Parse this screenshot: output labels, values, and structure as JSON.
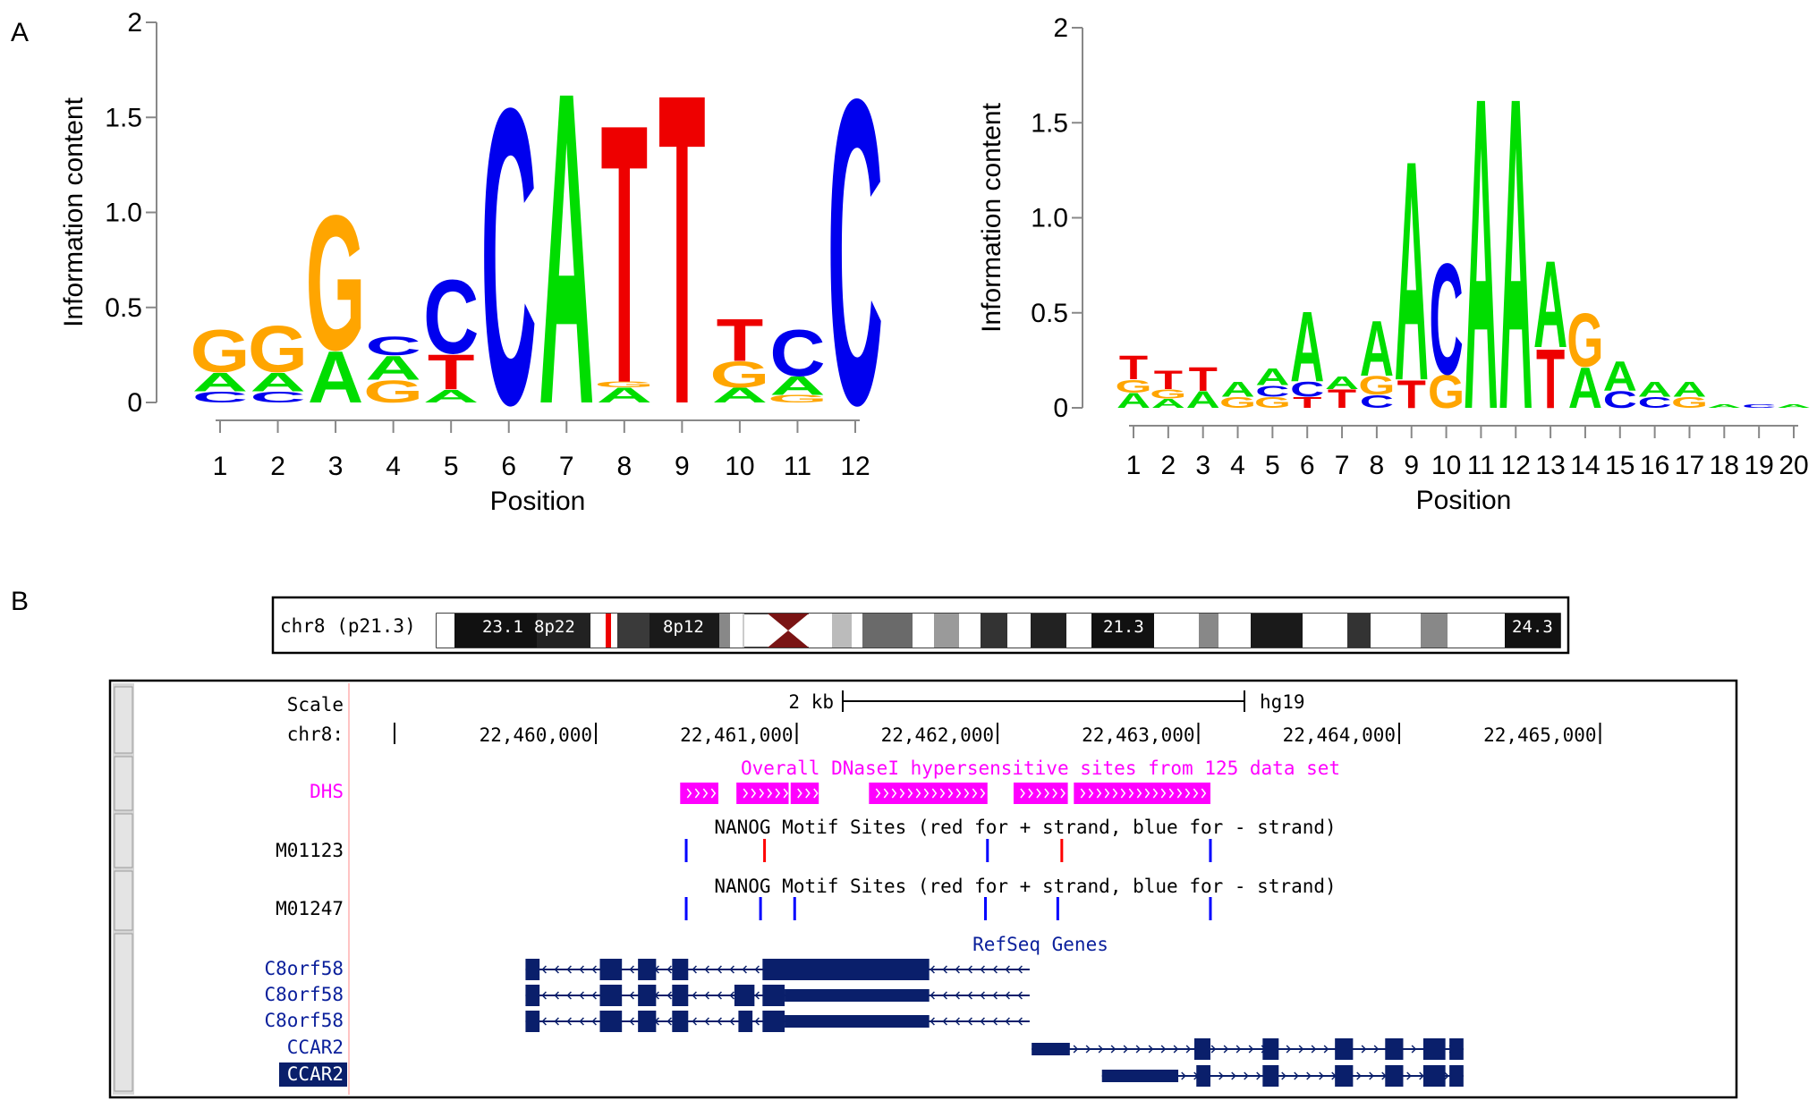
{
  "panel_labels": [
    "A",
    "B"
  ],
  "colors": {
    "A": "#00dd00",
    "C": "#0000ee",
    "G": "#ffa500",
    "T": "#ee0000",
    "dhs": "#ff00ff",
    "motif_plus": "#ff0000",
    "motif_minus": "#0000ff",
    "gene": "#0a1f6b"
  },
  "chart_data": [
    {
      "type": "sequence-logo",
      "title": "",
      "xlabel": "Position",
      "ylabel": "Information content",
      "ylim": [
        0,
        2
      ],
      "yticks": [
        "0",
        "0.5",
        "1.0",
        "1.5",
        "2"
      ],
      "categories": [
        "1",
        "2",
        "3",
        "4",
        "5",
        "6",
        "7",
        "8",
        "9",
        "10",
        "11",
        "12"
      ],
      "columns": [
        [
          [
            "C",
            0.06
          ],
          [
            "A",
            0.1
          ],
          [
            "G",
            0.23
          ]
        ],
        [
          [
            "C",
            0.06
          ],
          [
            "A",
            0.1
          ],
          [
            "G",
            0.25
          ]
        ],
        [
          [
            "A",
            0.28
          ],
          [
            "G",
            0.73
          ]
        ],
        [
          [
            "G",
            0.12
          ],
          [
            "A",
            0.13
          ],
          [
            "C",
            0.1
          ]
        ],
        [
          [
            "A",
            0.07
          ],
          [
            "T",
            0.19
          ],
          [
            "C",
            0.4
          ]
        ],
        [
          [
            "C",
            1.6
          ]
        ],
        [
          [
            "A",
            1.69
          ]
        ],
        [
          [
            "A",
            0.08
          ],
          [
            "G",
            0.03
          ],
          [
            "T",
            1.4
          ]
        ],
        [
          [
            "T",
            1.68
          ]
        ],
        [
          [
            "A",
            0.08
          ],
          [
            "G",
            0.14
          ],
          [
            "T",
            0.23
          ]
        ],
        [
          [
            "G",
            0.04
          ],
          [
            "A",
            0.1
          ],
          [
            "C",
            0.25
          ]
        ],
        [
          [
            "C",
            1.65
          ]
        ]
      ]
    },
    {
      "type": "sequence-logo",
      "title": "",
      "xlabel": "Position",
      "ylabel": "Information content",
      "ylim": [
        0,
        2
      ],
      "yticks": [
        "0",
        "0.5",
        "1.0",
        "1.5",
        "2"
      ],
      "categories": [
        "1",
        "2",
        "3",
        "4",
        "5",
        "6",
        "7",
        "8",
        "9",
        "10",
        "11",
        "12",
        "13",
        "14",
        "15",
        "16",
        "17",
        "18",
        "19",
        "20"
      ],
      "columns": [
        [
          [
            "A",
            0.08
          ],
          [
            "G",
            0.07
          ],
          [
            "T",
            0.13
          ]
        ],
        [
          [
            "A",
            0.05
          ],
          [
            "G",
            0.05
          ],
          [
            "T",
            0.1
          ]
        ],
        [
          [
            "A",
            0.09
          ],
          [
            "T",
            0.13
          ]
        ],
        [
          [
            "G",
            0.06
          ],
          [
            "A",
            0.08
          ]
        ],
        [
          [
            "G",
            0.06
          ],
          [
            "C",
            0.06
          ],
          [
            "A",
            0.09
          ]
        ],
        [
          [
            "T",
            0.06
          ],
          [
            "C",
            0.08
          ],
          [
            "A",
            0.38
          ]
        ],
        [
          [
            "T",
            0.1
          ],
          [
            "A",
            0.07
          ]
        ],
        [
          [
            "C",
            0.07
          ],
          [
            "G",
            0.1
          ],
          [
            "A",
            0.3
          ]
        ],
        [
          [
            "T",
            0.15
          ],
          [
            "A",
            1.19
          ]
        ],
        [
          [
            "G",
            0.18
          ],
          [
            "C",
            0.6
          ]
        ],
        [
          [
            "A",
            1.69
          ]
        ],
        [
          [
            "A",
            1.69
          ]
        ],
        [
          [
            "T",
            0.32
          ],
          [
            "A",
            0.47
          ]
        ],
        [
          [
            "A",
            0.22
          ],
          [
            "G",
            0.29
          ]
        ],
        [
          [
            "C",
            0.09
          ],
          [
            "A",
            0.16
          ]
        ],
        [
          [
            "C",
            0.06
          ],
          [
            "A",
            0.08
          ]
        ],
        [
          [
            "G",
            0.06
          ],
          [
            "A",
            0.08
          ]
        ],
        [
          [
            "A",
            0.02
          ]
        ],
        [
          [
            "C",
            0.02
          ]
        ],
        [
          [
            "A",
            0.02
          ]
        ]
      ]
    }
  ],
  "browser": {
    "chromosome": {
      "label": "chr8 (p21.3)",
      "band_labels": [
        "23.1",
        "8p22",
        "8p12",
        "21.3",
        "24.3"
      ]
    },
    "scale_label": "Scale",
    "scale_text": "2 kb",
    "assembly": "hg19",
    "chrom_label": "chr8:",
    "positions": [
      "22,460,000",
      "22,461,000",
      "22,462,000",
      "22,463,000",
      "22,464,000",
      "22,465,000"
    ],
    "dhs_title": "Overall DNaseI hypersensitive sites from 125 data set",
    "dhs_label": "DHS",
    "motif_title": "NANOG Motif Sites (red for + strand, blue for - strand)",
    "motif_tracks": [
      {
        "label": "M01123",
        "sites": [
          {
            "pos": 22460450,
            "strand": "-"
          },
          {
            "pos": 22460840,
            "strand": "+"
          },
          {
            "pos": 22461950,
            "strand": "-"
          },
          {
            "pos": 22462320,
            "strand": "+"
          },
          {
            "pos": 22463060,
            "strand": "-"
          }
        ]
      },
      {
        "label": "M01247",
        "sites": [
          {
            "pos": 22460450,
            "strand": "-"
          },
          {
            "pos": 22460820,
            "strand": "-"
          },
          {
            "pos": 22460990,
            "strand": "-"
          },
          {
            "pos": 22461940,
            "strand": "-"
          },
          {
            "pos": 22462300,
            "strand": "-"
          },
          {
            "pos": 22463060,
            "strand": "-"
          }
        ]
      }
    ],
    "refseq_title": "RefSeq Genes",
    "gene_labels": [
      "C8orf58",
      "C8orf58",
      "C8orf58",
      "CCAR2",
      "CCAR2"
    ]
  }
}
